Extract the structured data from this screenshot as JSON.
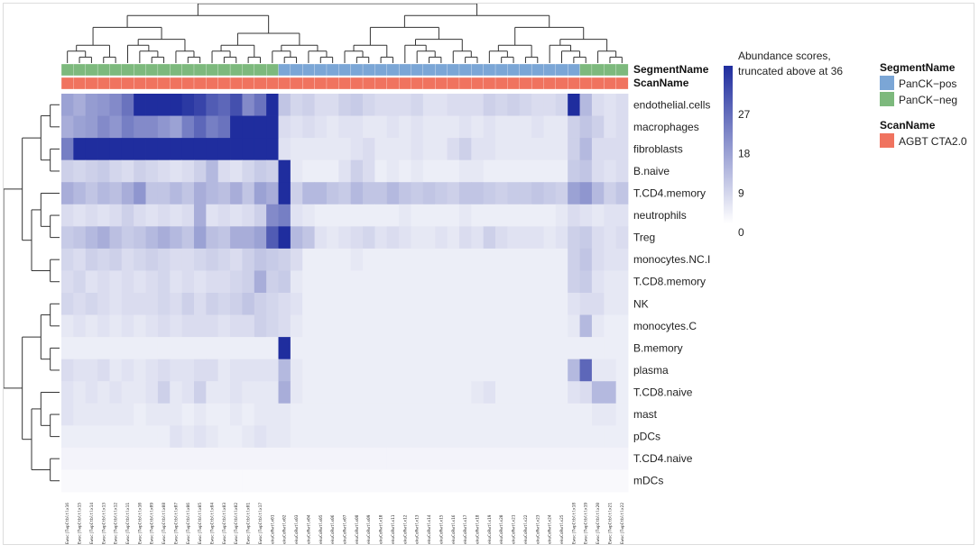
{
  "chart_data": {
    "type": "heatmap",
    "title": "",
    "rows": [
      "endothelial.cells",
      "macrophages",
      "fibroblasts",
      "B.naive",
      "T.CD4.memory",
      "neutrophils",
      "Treg",
      "monocytes.NC.I",
      "T.CD8.memory",
      "NK",
      "monocytes.C",
      "B.memory",
      "plasma",
      "T.CD8.naive",
      "mast",
      "pDCs",
      "T.CD4.naive",
      "mDCs"
    ],
    "n_columns": 47,
    "column_labels": [
      "Ewuc|TwpCtbltlx16",
      "Ewuc|TwpCtbltlx15",
      "Ewuc|TwpCtbltlx14",
      "Ewuc|TwpCtbltlx13",
      "Ewuc|TwpCtbltlx12",
      "Ewuc|TwpCtbltlx11",
      "Ewuc|TwpCtbltlx10",
      "Ewuc|TwpCtbltlx09",
      "Ewuc|TwpCtbltlx08",
      "Ewuc|TwpCtbltlx07",
      "Ewuc|TwpCtbltlx06",
      "Ewuc|TwpCtbltlx05",
      "Ewuc|TwpCtbltlx04",
      "Ewuc|TwpCtbltlx03",
      "Ewuc|TwpCtbltlx02",
      "Ewuc|TwpCtbltlx01",
      "Ewuc|TwpCtbltlx17",
      "ekuCoRwtlx01",
      "ekuCoRwtlx02",
      "ekuCoRwtlx03",
      "ekuCoRwtlx04",
      "ekuCoRwtlx05",
      "ekuCoRwtlx06",
      "ekuCoRwtlx07",
      "ekuCoRwtlx08",
      "ekuCoRwtlx09",
      "ekuCoRwtlx10",
      "ekuCoRwtlx11",
      "ekuCoRwtlx12",
      "ekuCoRwtlx13",
      "ekuCoRwtlx14",
      "ekuCoRwtlx15",
      "ekuCoRwtlx16",
      "ekuCoRwtlx17",
      "ekuCoRwtlx18",
      "ekuCoRwtlx19",
      "ekuCoRwtlx20",
      "ekuCoRwtlx21",
      "ekuCoRwtlx22",
      "ekuCoRwtlx23",
      "ekuCoRwtlx24",
      "ekuCoRwtlx25",
      "Ewuc|TwpCtbltlx18",
      "Ewuc|TwpCtbltlx19",
      "Ewuc|TwpCtbltlx20",
      "Ewuc|TwpCtbltlx21",
      "Ewuc|TwpCtbltlx22"
    ],
    "segment": [
      "neg",
      "neg",
      "neg",
      "neg",
      "neg",
      "neg",
      "neg",
      "neg",
      "neg",
      "neg",
      "neg",
      "neg",
      "neg",
      "neg",
      "neg",
      "neg",
      "neg",
      "neg",
      "pos",
      "pos",
      "pos",
      "pos",
      "pos",
      "pos",
      "pos",
      "pos",
      "pos",
      "pos",
      "pos",
      "pos",
      "pos",
      "pos",
      "pos",
      "pos",
      "pos",
      "pos",
      "pos",
      "pos",
      "pos",
      "pos",
      "pos",
      "pos",
      "pos",
      "neg",
      "neg",
      "neg",
      "neg"
    ],
    "values": [
      [
        16,
        14,
        17,
        18,
        20,
        24,
        36,
        36,
        36,
        36,
        34,
        32,
        28,
        26,
        30,
        20,
        24,
        36,
        10,
        7,
        8,
        6,
        6,
        8,
        9,
        7,
        6,
        6,
        6,
        7,
        5,
        5,
        6,
        6,
        6,
        8,
        7,
        8,
        7,
        6,
        6,
        7,
        36,
        12,
        6,
        5,
        6
      ],
      [
        14,
        16,
        17,
        20,
        18,
        22,
        20,
        20,
        18,
        16,
        22,
        26,
        22,
        24,
        36,
        36,
        36,
        36,
        6,
        5,
        6,
        5,
        4,
        5,
        5,
        4,
        4,
        5,
        4,
        5,
        4,
        4,
        4,
        5,
        4,
        5,
        4,
        4,
        4,
        5,
        4,
        4,
        8,
        10,
        8,
        5,
        6
      ],
      [
        22,
        36,
        36,
        36,
        36,
        36,
        36,
        36,
        36,
        36,
        36,
        36,
        36,
        36,
        36,
        36,
        36,
        36,
        5,
        4,
        4,
        4,
        4,
        4,
        5,
        6,
        4,
        4,
        4,
        5,
        4,
        4,
        6,
        8,
        5,
        5,
        4,
        4,
        4,
        4,
        4,
        4,
        8,
        12,
        6,
        6,
        6
      ],
      [
        8,
        7,
        8,
        9,
        7,
        6,
        8,
        7,
        6,
        5,
        6,
        8,
        12,
        6,
        5,
        7,
        9,
        8,
        36,
        4,
        3,
        3,
        3,
        5,
        8,
        6,
        3,
        4,
        3,
        4,
        3,
        3,
        3,
        4,
        4,
        3,
        3,
        3,
        3,
        3,
        3,
        3,
        9,
        10,
        6,
        5,
        6
      ],
      [
        14,
        12,
        10,
        12,
        11,
        14,
        18,
        10,
        10,
        12,
        10,
        14,
        12,
        11,
        14,
        10,
        16,
        14,
        36,
        8,
        12,
        12,
        10,
        9,
        12,
        10,
        10,
        12,
        10,
        9,
        10,
        9,
        8,
        10,
        10,
        9,
        8,
        9,
        9,
        10,
        9,
        8,
        16,
        18,
        12,
        8,
        10
      ],
      [
        6,
        5,
        6,
        5,
        6,
        8,
        6,
        5,
        6,
        5,
        6,
        14,
        5,
        6,
        5,
        6,
        8,
        20,
        22,
        5,
        4,
        3,
        3,
        3,
        3,
        3,
        3,
        3,
        4,
        3,
        3,
        3,
        3,
        4,
        3,
        3,
        3,
        3,
        3,
        3,
        3,
        4,
        6,
        5,
        4,
        5,
        5
      ],
      [
        9,
        10,
        12,
        14,
        11,
        9,
        10,
        12,
        14,
        12,
        10,
        16,
        11,
        10,
        14,
        14,
        16,
        28,
        36,
        12,
        10,
        5,
        4,
        5,
        6,
        7,
        5,
        6,
        5,
        4,
        4,
        5,
        4,
        6,
        5,
        8,
        6,
        5,
        5,
        5,
        4,
        5,
        8,
        9,
        6,
        5,
        6
      ],
      [
        7,
        6,
        8,
        7,
        8,
        6,
        7,
        8,
        7,
        6,
        6,
        7,
        8,
        7,
        6,
        8,
        10,
        9,
        8,
        6,
        3,
        3,
        3,
        3,
        4,
        3,
        3,
        3,
        3,
        3,
        3,
        3,
        3,
        3,
        3,
        3,
        3,
        3,
        3,
        3,
        3,
        3,
        8,
        10,
        6,
        5,
        5
      ],
      [
        6,
        7,
        5,
        6,
        5,
        6,
        5,
        6,
        7,
        5,
        6,
        5,
        6,
        6,
        7,
        8,
        14,
        8,
        9,
        4,
        3,
        3,
        3,
        3,
        3,
        3,
        3,
        3,
        3,
        3,
        3,
        3,
        3,
        3,
        3,
        3,
        3,
        3,
        3,
        3,
        3,
        3,
        8,
        9,
        5,
        4,
        4
      ],
      [
        7,
        6,
        7,
        6,
        5,
        6,
        6,
        6,
        7,
        6,
        8,
        6,
        8,
        7,
        8,
        10,
        8,
        7,
        6,
        5,
        3,
        3,
        3,
        3,
        3,
        3,
        3,
        3,
        3,
        3,
        3,
        3,
        3,
        3,
        3,
        3,
        3,
        3,
        3,
        3,
        3,
        3,
        5,
        6,
        6,
        4,
        4
      ],
      [
        4,
        5,
        4,
        5,
        4,
        5,
        4,
        5,
        6,
        5,
        6,
        6,
        6,
        5,
        6,
        6,
        8,
        7,
        6,
        4,
        3,
        3,
        3,
        3,
        3,
        3,
        3,
        3,
        3,
        3,
        3,
        3,
        3,
        3,
        3,
        3,
        3,
        3,
        3,
        3,
        3,
        3,
        4,
        12,
        4,
        3,
        3
      ],
      [
        3,
        3,
        3,
        3,
        3,
        3,
        3,
        3,
        3,
        3,
        3,
        3,
        3,
        3,
        3,
        3,
        3,
        3,
        36,
        3,
        3,
        3,
        3,
        3,
        3,
        3,
        3,
        3,
        3,
        3,
        3,
        3,
        3,
        3,
        3,
        3,
        3,
        3,
        3,
        3,
        3,
        3,
        3,
        3,
        3,
        3,
        3
      ],
      [
        6,
        5,
        5,
        6,
        4,
        5,
        4,
        5,
        6,
        5,
        5,
        6,
        6,
        4,
        5,
        5,
        5,
        5,
        12,
        4,
        3,
        3,
        3,
        3,
        3,
        3,
        3,
        3,
        3,
        3,
        3,
        3,
        3,
        3,
        3,
        3,
        3,
        3,
        3,
        3,
        3,
        3,
        12,
        26,
        4,
        4,
        3
      ],
      [
        5,
        4,
        5,
        4,
        5,
        4,
        4,
        5,
        8,
        4,
        5,
        8,
        4,
        4,
        5,
        4,
        4,
        4,
        14,
        4,
        3,
        3,
        3,
        3,
        3,
        3,
        3,
        3,
        3,
        3,
        3,
        3,
        3,
        3,
        4,
        5,
        3,
        3,
        3,
        3,
        3,
        3,
        5,
        6,
        12,
        12,
        3
      ],
      [
        5,
        4,
        4,
        4,
        4,
        4,
        3,
        4,
        4,
        4,
        3,
        4,
        3,
        3,
        4,
        3,
        4,
        4,
        4,
        3,
        3,
        3,
        3,
        3,
        3,
        3,
        3,
        3,
        3,
        3,
        3,
        3,
        3,
        3,
        3,
        3,
        3,
        3,
        3,
        3,
        3,
        3,
        3,
        3,
        4,
        4,
        3
      ],
      [
        3,
        3,
        3,
        3,
        3,
        3,
        3,
        3,
        3,
        5,
        4,
        5,
        4,
        3,
        3,
        4,
        5,
        4,
        4,
        3,
        3,
        3,
        3,
        3,
        3,
        3,
        3,
        3,
        3,
        3,
        3,
        3,
        3,
        3,
        3,
        3,
        3,
        3,
        3,
        3,
        3,
        3,
        3,
        3,
        3,
        3,
        3
      ],
      [
        2,
        2,
        2,
        2,
        2,
        2,
        2,
        2,
        2,
        2,
        2,
        2,
        2,
        2,
        2,
        2,
        2,
        2,
        2,
        2,
        2,
        2,
        2,
        2,
        2,
        2,
        2,
        2,
        2,
        2,
        2,
        2,
        2,
        2,
        2,
        2,
        2,
        2,
        2,
        2,
        2,
        2,
        2,
        2,
        2,
        2,
        2
      ],
      [
        1,
        1,
        1,
        1,
        1,
        1,
        1,
        1,
        1,
        1,
        1,
        1,
        1,
        1,
        1,
        1,
        1,
        1,
        1,
        1,
        1,
        1,
        1,
        1,
        1,
        1,
        1,
        1,
        1,
        1,
        1,
        1,
        1,
        1,
        1,
        1,
        1,
        1,
        1,
        1,
        1,
        1,
        1,
        1,
        1,
        1,
        1
      ]
    ],
    "color_scale": {
      "title_line1": "Abundance scores,",
      "title_line2": "truncated above at 36",
      "min": 0,
      "max": 36,
      "ticks": [
        0,
        9,
        18,
        27
      ],
      "low_color": "#ffffff",
      "high_color": "#1f2d9e"
    },
    "annotation_bars": [
      {
        "label": "SegmentName"
      },
      {
        "label": "ScanName"
      }
    ],
    "legend": {
      "segment_title": "SegmentName",
      "segment_items": [
        {
          "key": "pos",
          "label": "PanCK−pos",
          "color": "#7ba6d6"
        },
        {
          "key": "neg",
          "label": "PanCK−neg",
          "color": "#7db97d"
        }
      ],
      "scan_title": "ScanName",
      "scan_items": [
        {
          "label": "AGBT CTA2.0",
          "color": "#f0735f"
        }
      ]
    }
  }
}
